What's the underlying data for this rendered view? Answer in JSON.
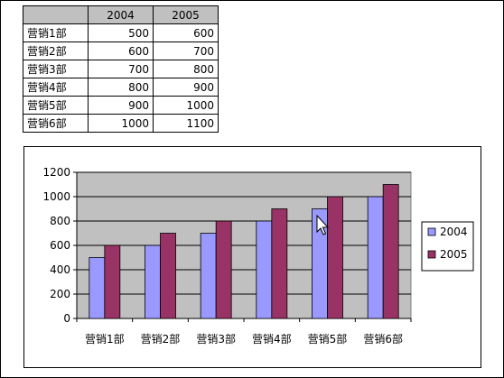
{
  "table": {
    "headers": [
      "",
      "2004",
      "2005"
    ],
    "rows": [
      {
        "label": "营销1部",
        "v2004": "500",
        "v2005": "600"
      },
      {
        "label": "营销2部",
        "v2004": "600",
        "v2005": "700"
      },
      {
        "label": "营销3部",
        "v2004": "700",
        "v2005": "800"
      },
      {
        "label": "营销4部",
        "v2004": "800",
        "v2005": "900"
      },
      {
        "label": "营销5部",
        "v2004": "900",
        "v2005": "1000"
      },
      {
        "label": "营销6部",
        "v2004": "1000",
        "v2005": "1100"
      }
    ]
  },
  "chart_data": {
    "type": "bar",
    "categories": [
      "营销1部",
      "营销2部",
      "营销3部",
      "营销4部",
      "营销5部",
      "营销6部"
    ],
    "series": [
      {
        "name": "2004",
        "values": [
          500,
          600,
          700,
          800,
          900,
          1000
        ],
        "color": "#9999ff"
      },
      {
        "name": "2005",
        "values": [
          600,
          700,
          800,
          900,
          1000,
          1100
        ],
        "color": "#993366"
      }
    ],
    "title": "",
    "xlabel": "",
    "ylabel": "",
    "ylim": [
      0,
      1200
    ],
    "yticks": [
      0,
      200,
      400,
      600,
      800,
      1000,
      1200
    ],
    "grid": true,
    "legend": "right",
    "plot_background": "#c0c0c0"
  }
}
